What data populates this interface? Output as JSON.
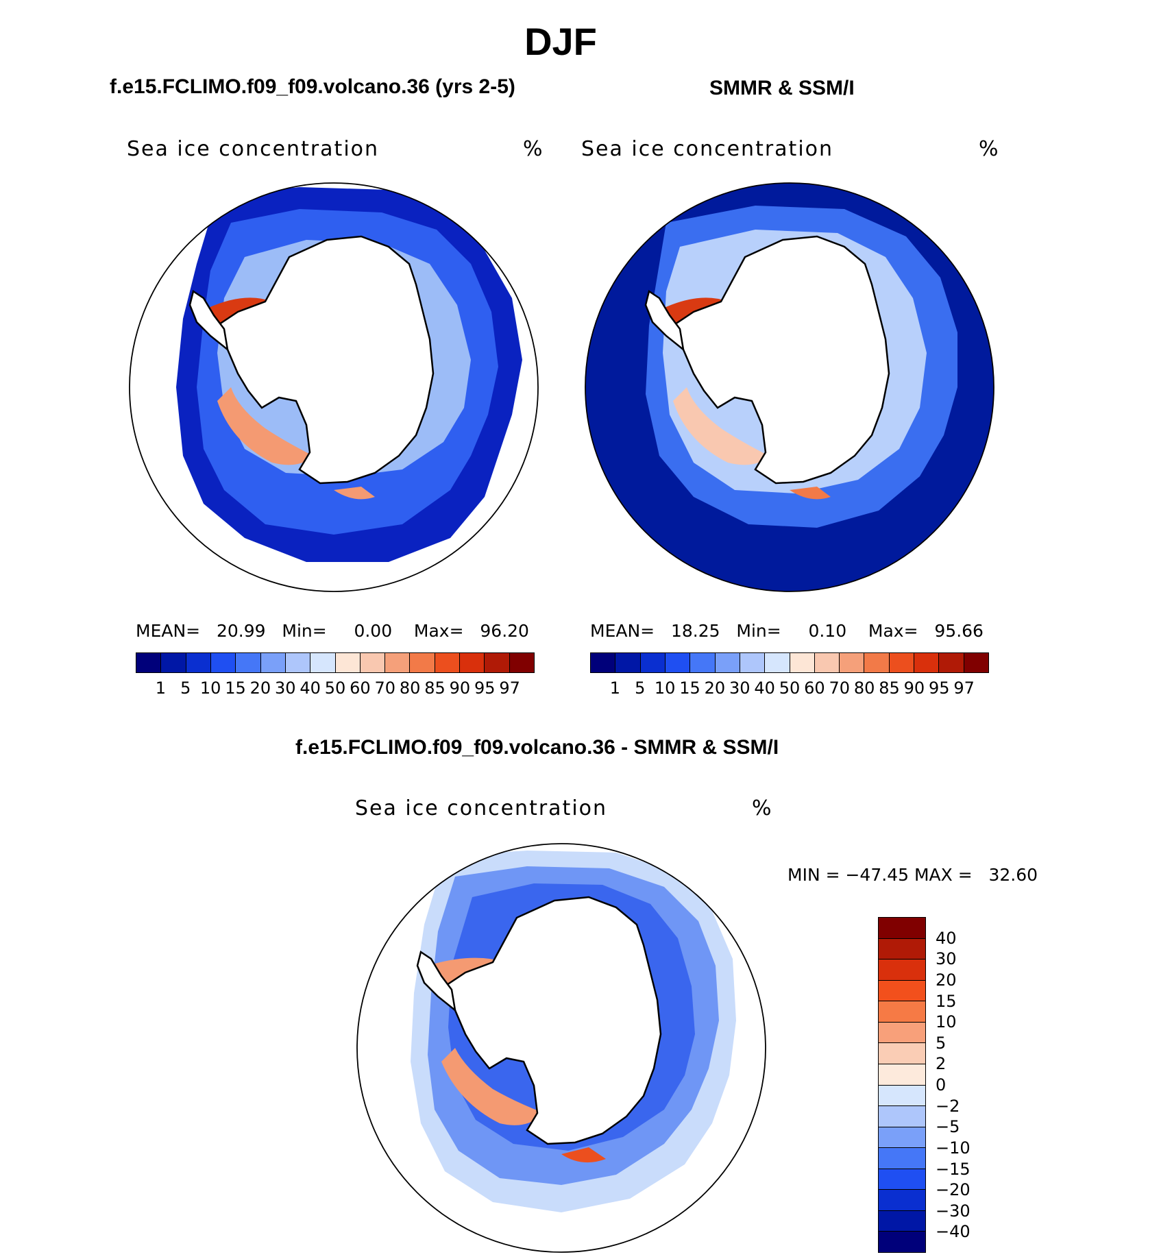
{
  "figure": {
    "season": "DJF",
    "caption": "Sea ice concentration"
  },
  "panels": {
    "model": {
      "title": "f.e15.FCLIMO.f09_f09.volcano.36 (yrs 2-5)",
      "variable": "Sea ice concentration",
      "units": "%",
      "stats": {
        "mean_label": "MEAN=",
        "mean": "20.99",
        "min_label": "Min=",
        "min": "0.00",
        "max_label": "Max=",
        "max": "96.20"
      }
    },
    "obs": {
      "title": "SMMR & SSM/I",
      "variable": "Sea ice concentration",
      "units": "%",
      "stats": {
        "mean_label": "MEAN=",
        "mean": "18.25",
        "min_label": "Min=",
        "min": "0.10",
        "max_label": "Max=",
        "max": "95.66"
      }
    },
    "diff": {
      "title": "f.e15.FCLIMO.f09_f09.volcano.36 - SMMR & SSM/I",
      "variable": "Sea ice concentration",
      "units": "%",
      "stats_text": "MIN = −47.45 MAX =   32.60"
    }
  },
  "colorbars": {
    "concentration": {
      "levels": [
        "1",
        "5",
        "10",
        "15",
        "20",
        "30",
        "40",
        "50",
        "60",
        "70",
        "80",
        "85",
        "90",
        "95",
        "97"
      ],
      "colors": [
        "#00007a",
        "#0017a6",
        "#0a2fd0",
        "#1f4ff2",
        "#4577f7",
        "#7aa0f9",
        "#aec6fb",
        "#d6e6fd",
        "#fde6d6",
        "#f9c8b0",
        "#f5a07a",
        "#f27a48",
        "#ec4f1e",
        "#d9300c",
        "#b01a06",
        "#800000"
      ]
    },
    "difference": {
      "levels": [
        "40",
        "30",
        "20",
        "15",
        "10",
        "5",
        "2",
        "0",
        "−2",
        "−5",
        "−10",
        "−15",
        "−20",
        "−30",
        "−40"
      ],
      "colors": [
        "#800000",
        "#b01a06",
        "#d9300c",
        "#f2501c",
        "#f67a45",
        "#f8a07a",
        "#facdb5",
        "#fdeadc",
        "#d6e6fd",
        "#aec6fb",
        "#7aa0f9",
        "#4577f7",
        "#1f4ff2",
        "#0a2fd0",
        "#0017a6",
        "#00007a"
      ]
    }
  },
  "maps": {
    "projection": "south-polar-stereographic",
    "region": "Antarctica / Southern Ocean",
    "model_field": {
      "outer_color": "#0a22c0",
      "mid_color": "#4a7ef2",
      "inner_color": "#9cbcf7",
      "hotspot_color": "#d93a12"
    },
    "obs_field": {
      "outer_color": "#001a9c",
      "mid_color": "#3a6ef0",
      "inner_color": "#b8d0fb",
      "hotspot_color": "#d93a12"
    },
    "diff_field": {
      "outer_color": "#c9dcfb",
      "mid_color": "#6f96f5",
      "inner_color": "#3a66ee",
      "hotspot_color": "#f49a72"
    }
  }
}
